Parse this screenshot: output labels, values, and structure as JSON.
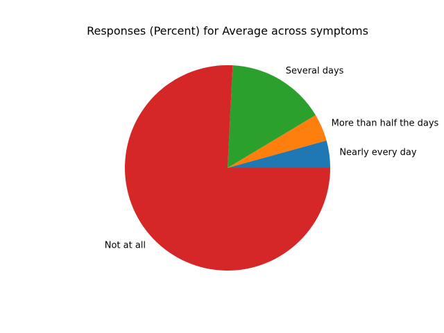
{
  "chart_data": {
    "type": "pie",
    "title": "Responses (Percent) for Average across symptoms",
    "start_angle_deg": 0,
    "direction": "counterclockwise",
    "slices": [
      {
        "label": "Nearly every day",
        "value": 4.3,
        "color": "#1f77b4"
      },
      {
        "label": "More than half the days",
        "value": 4.3,
        "color": "#ff7f0e"
      },
      {
        "label": "Several days",
        "value": 15.6,
        "color": "#2ca02c"
      },
      {
        "label": "Not at all",
        "value": 75.8,
        "color": "#d62728"
      }
    ]
  }
}
